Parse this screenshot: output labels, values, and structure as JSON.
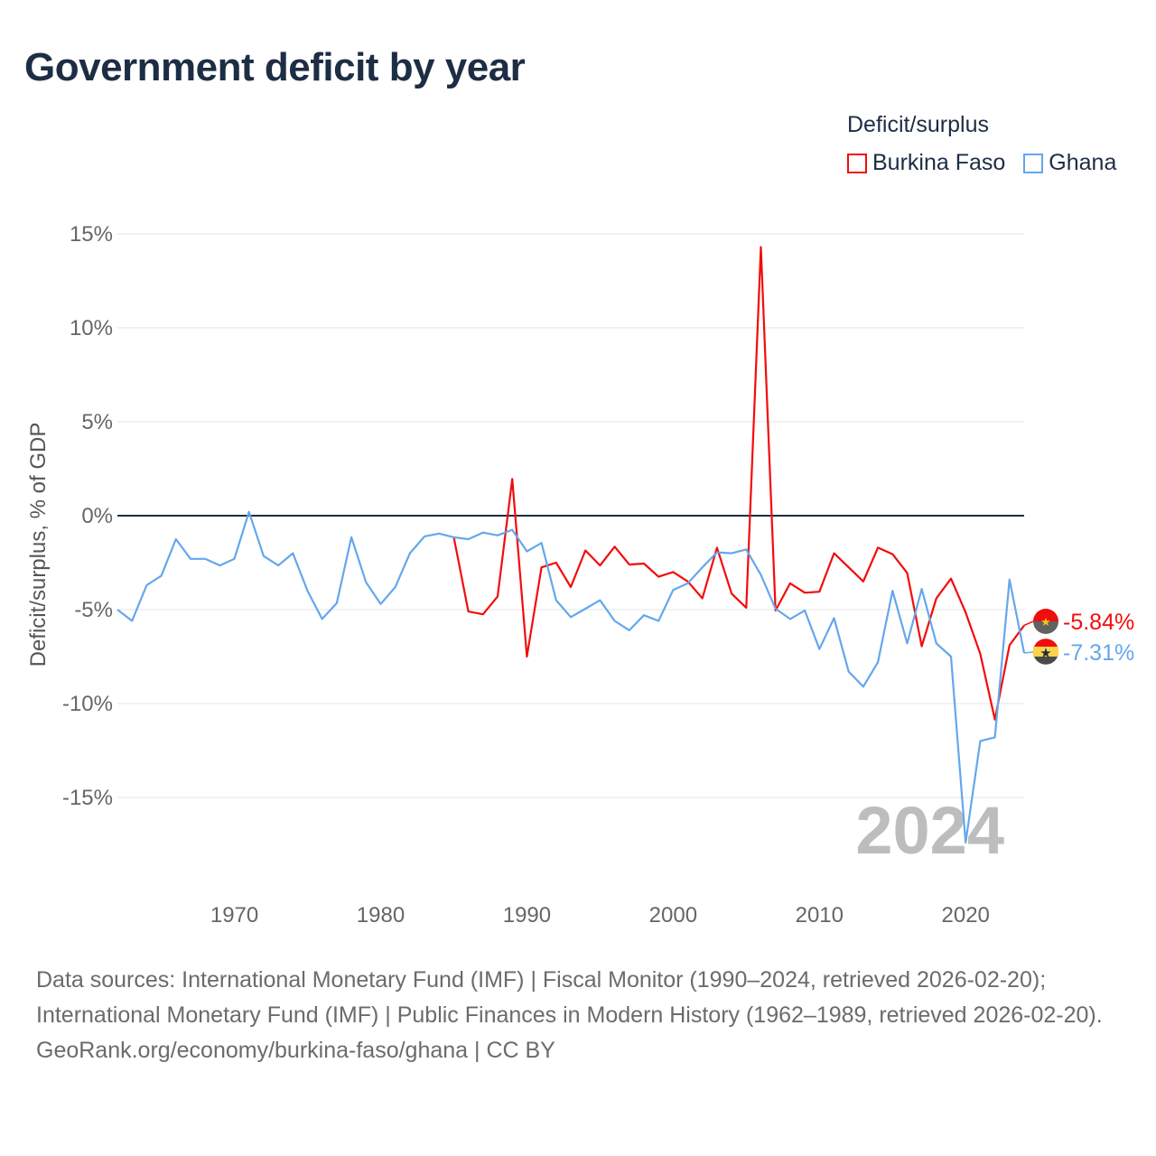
{
  "title": "Government deficit by year",
  "legend": {
    "title": "Deficit/surplus",
    "items": [
      {
        "name": "Burkina Faso",
        "color": "#f30b0b"
      },
      {
        "name": "Ghana",
        "color": "#64a7ec"
      }
    ]
  },
  "source": {
    "line1": "Data sources: International Monetary Fund (IMF) | Fiscal Monitor (1990–2024, retrieved 2026-02-20); International Monetary Fund (IMF) | Public Finances in Modern History (1962–1989, retrieved 2026-02-20).",
    "line2": "GeoRank.org/economy/burkina-faso/ghana | CC BY"
  },
  "chart_data": {
    "type": "line",
    "title": "Government deficit by year",
    "xlabel": "",
    "ylabel": "Deficit/surplus, % of GDP",
    "xlim": [
      1962,
      2024
    ],
    "ylim": [
      -18,
      16
    ],
    "xticks": [
      1970,
      1980,
      1990,
      2000,
      2010,
      2020
    ],
    "yticks": [
      15,
      10,
      5,
      0,
      -5,
      -10,
      -15
    ],
    "ytick_labels": [
      "15%",
      "10%",
      "5%",
      "0%",
      "-5%",
      "-10%",
      "-15%"
    ],
    "year_watermark": "2024",
    "grid": true,
    "legend_position": "top-right",
    "series": [
      {
        "name": "Burkina Faso",
        "color": "#f30b0b",
        "start_year": 1985,
        "end_label": "-5.84%",
        "values": [
          -1.15,
          -5.1,
          -5.25,
          -4.3,
          1.95,
          -7.5,
          -2.75,
          -2.5,
          -3.8,
          -1.85,
          -2.65,
          -1.65,
          -2.6,
          -2.55,
          -3.25,
          -3.0,
          -3.5,
          -4.4,
          -1.7,
          -4.15,
          -4.9,
          14.3,
          -5.05,
          -3.6,
          -4.1,
          -4.05,
          -2.0,
          -2.75,
          -3.5,
          -1.7,
          -2.05,
          -3.05,
          -6.95,
          -4.4,
          -3.35,
          -5.15,
          -7.35,
          -10.85,
          -6.9,
          -5.84
        ]
      },
      {
        "name": "Ghana",
        "color": "#64a7ec",
        "start_year": 1962,
        "end_label": "-7.31%",
        "values": [
          -5.0,
          -5.6,
          -3.7,
          -3.2,
          -1.25,
          -2.3,
          -2.3,
          -2.65,
          -2.3,
          0.2,
          -2.15,
          -2.65,
          -2.0,
          -4.0,
          -5.5,
          -4.65,
          -1.15,
          -3.55,
          -4.7,
          -3.8,
          -2.0,
          -1.1,
          -0.95,
          -1.15,
          -1.25,
          -0.9,
          -1.05,
          -0.75,
          -1.9,
          -1.45,
          -4.5,
          -5.4,
          -4.95,
          -4.5,
          -5.6,
          -6.1,
          -5.3,
          -5.6,
          -3.95,
          -3.6,
          -2.75,
          -1.95,
          -2.0,
          -1.8,
          -3.15,
          -4.95,
          -5.5,
          -5.05,
          -7.1,
          -5.45,
          -8.3,
          -9.1,
          -7.8,
          -4.0,
          -6.8,
          -3.9,
          -6.8,
          -7.5,
          -17.4,
          -12.0,
          -11.8,
          -3.4,
          -7.31
        ]
      }
    ]
  }
}
